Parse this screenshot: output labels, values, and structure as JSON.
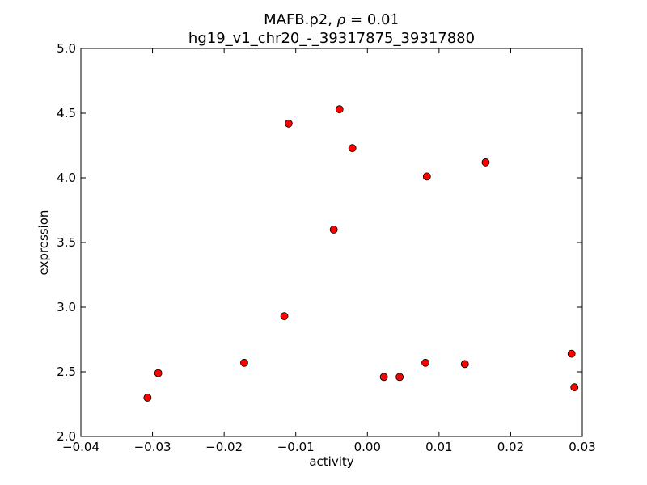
{
  "chart_data": {
    "type": "scatter",
    "title_line1_prefix": "MAFB.p2, ",
    "title_line1_symbol": "ρ",
    "title_line1_eq": " = ",
    "title_line1_value": "0.01",
    "title_line2": "hg19_v1_chr20_-_39317875_39317880",
    "xlabel": "activity",
    "ylabel": "expression",
    "xlim": [
      -0.04,
      0.03
    ],
    "ylim": [
      2.0,
      5.0
    ],
    "xticks": [
      -0.04,
      -0.03,
      -0.02,
      -0.01,
      0.0,
      0.01,
      0.02,
      0.03
    ],
    "xtick_labels": [
      "−0.04",
      "−0.03",
      "−0.02",
      "−0.01",
      "0.00",
      "0.01",
      "0.02",
      "0.03"
    ],
    "yticks": [
      2.0,
      2.5,
      3.0,
      3.5,
      4.0,
      4.5,
      5.0
    ],
    "ytick_labels": [
      "2.0",
      "2.5",
      "3.0",
      "3.5",
      "4.0",
      "4.5",
      "5.0"
    ],
    "grid": false,
    "marker_color": "#ff0000",
    "marker_edge_color": "#000000",
    "points": [
      {
        "x": -0.0307,
        "y": 2.3
      },
      {
        "x": -0.0292,
        "y": 2.49
      },
      {
        "x": -0.0172,
        "y": 2.57
      },
      {
        "x": -0.0116,
        "y": 2.93
      },
      {
        "x": -0.011,
        "y": 4.42
      },
      {
        "x": -0.0047,
        "y": 3.6
      },
      {
        "x": -0.0039,
        "y": 4.53
      },
      {
        "x": -0.0021,
        "y": 4.23
      },
      {
        "x": 0.0023,
        "y": 2.46
      },
      {
        "x": 0.0045,
        "y": 2.46
      },
      {
        "x": 0.0081,
        "y": 2.57
      },
      {
        "x": 0.0083,
        "y": 4.01
      },
      {
        "x": 0.0136,
        "y": 2.56
      },
      {
        "x": 0.0165,
        "y": 4.12
      },
      {
        "x": 0.0285,
        "y": 2.64
      },
      {
        "x": 0.0289,
        "y": 2.38
      }
    ]
  }
}
